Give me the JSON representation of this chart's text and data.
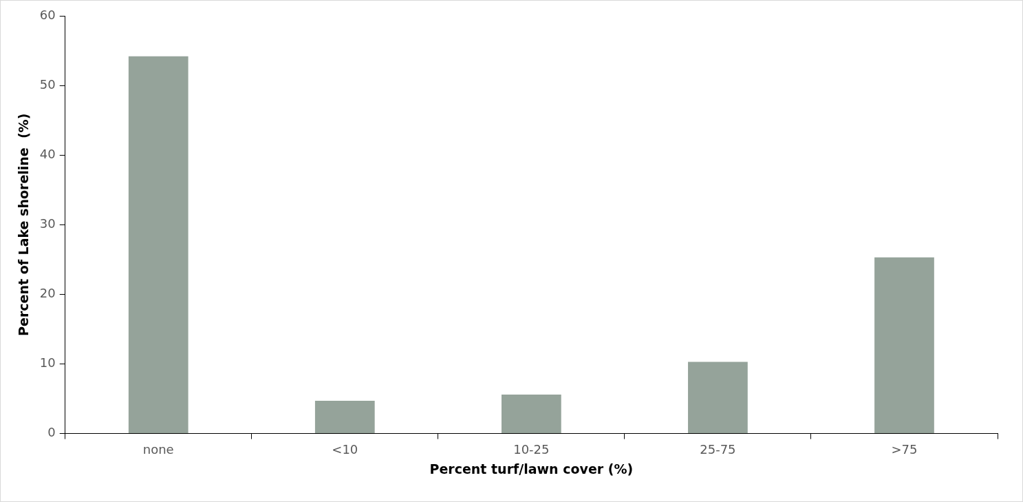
{
  "chart_data": {
    "type": "bar",
    "xlabel": "Percent turf/lawn cover (%)",
    "ylabel": "Percent of Lake shoreline  (%)",
    "categories": [
      "none",
      "<10",
      "10-25",
      "25-75",
      ">75"
    ],
    "values": [
      54.2,
      4.7,
      5.6,
      10.3,
      25.3
    ],
    "color": "#95a39a",
    "ylim": [
      0,
      60
    ],
    "yticks": [
      0,
      10,
      20,
      30,
      40,
      50,
      60
    ],
    "grid": false,
    "legend": false
  }
}
